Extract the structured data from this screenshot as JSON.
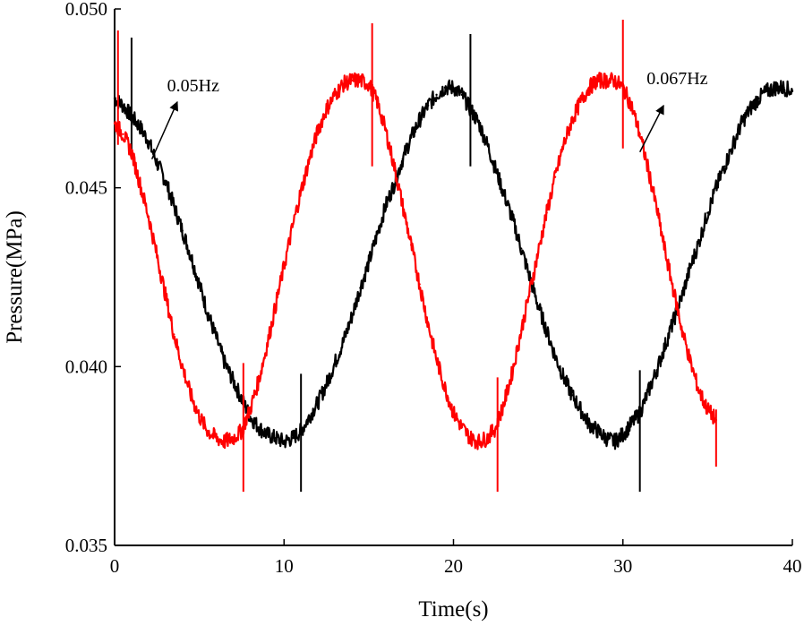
{
  "chart_data": {
    "type": "line",
    "title": "",
    "xlabel": "Time(s)",
    "ylabel": "Pressure(MPa)",
    "xlim": [
      0,
      40
    ],
    "ylim": [
      0.035,
      0.05
    ],
    "grid": false,
    "x_ticks": [
      {
        "value": 0,
        "label": "0"
      },
      {
        "value": 10,
        "label": "10"
      },
      {
        "value": 20,
        "label": "20"
      },
      {
        "value": 30,
        "label": "30"
      },
      {
        "value": 40,
        "label": "40"
      }
    ],
    "y_ticks": [
      {
        "value": 0.035,
        "label": "0.035"
      },
      {
        "value": 0.04,
        "label": "0.040"
      },
      {
        "value": 0.045,
        "label": "0.045"
      },
      {
        "value": 0.05,
        "label": "0.050"
      }
    ],
    "series": [
      {
        "color": "#000000",
        "frequency_hz": 0.05,
        "x": [
          0,
          0.5,
          1,
          1.5,
          2,
          2.5,
          3,
          3.5,
          4,
          4.5,
          5,
          5.5,
          6,
          6.5,
          7,
          7.5,
          8,
          8.5,
          9,
          9.5,
          10,
          10.5,
          11,
          11.5,
          12,
          12.5,
          13,
          13.5,
          14,
          14.5,
          15,
          15.5,
          16,
          16.5,
          17,
          17.5,
          18,
          18.5,
          19,
          19.5,
          20,
          20.5,
          21,
          21.5,
          22,
          22.5,
          23,
          23.5,
          24,
          24.5,
          25,
          25.5,
          26,
          26.5,
          27,
          27.5,
          28,
          28.5,
          29,
          29.5,
          30,
          30.5,
          31,
          31.5,
          32,
          32.5,
          33,
          33.5,
          34,
          34.5,
          35,
          35.5,
          36,
          36.5,
          37,
          37.5,
          38,
          38.5,
          39,
          39.5,
          40
        ],
        "y": [
          0.0475,
          0.0473,
          0.047,
          0.0467,
          0.0463,
          0.0457,
          0.0452,
          0.0445,
          0.0438,
          0.0431,
          0.0423,
          0.0415,
          0.0408,
          0.0401,
          0.0396,
          0.0391,
          0.0386,
          0.0383,
          0.0381,
          0.038,
          0.0379,
          0.038,
          0.0382,
          0.0386,
          0.039,
          0.0395,
          0.0401,
          0.0407,
          0.0414,
          0.0422,
          0.0429,
          0.0437,
          0.0445,
          0.0451,
          0.0458,
          0.0464,
          0.0469,
          0.0473,
          0.0476,
          0.0478,
          0.0478,
          0.0476,
          0.0472,
          0.0468,
          0.0462,
          0.0455,
          0.0448,
          0.0441,
          0.0433,
          0.0425,
          0.0417,
          0.041,
          0.0403,
          0.0397,
          0.0392,
          0.0388,
          0.0384,
          0.0382,
          0.038,
          0.0379,
          0.0381,
          0.0384,
          0.0387,
          0.0393,
          0.0399,
          0.0406,
          0.0413,
          0.042,
          0.0428,
          0.0435,
          0.0443,
          0.045,
          0.0456,
          0.0462,
          0.0468,
          0.0472,
          0.0475,
          0.0477,
          0.0478,
          0.0478,
          0.0477
        ],
        "spikes": [
          {
            "x": 1.0,
            "y_min": 0.046,
            "y_max": 0.0492
          },
          {
            "x": 11.0,
            "y_min": 0.0365,
            "y_max": 0.0398
          },
          {
            "x": 21.0,
            "y_min": 0.0456,
            "y_max": 0.0493
          },
          {
            "x": 31.0,
            "y_min": 0.0365,
            "y_max": 0.0399
          }
        ]
      },
      {
        "color": "#ff0000",
        "frequency_hz": 0.067,
        "x": [
          0,
          0.5,
          1,
          1.5,
          2,
          2.5,
          3,
          3.5,
          4,
          4.5,
          5,
          5.5,
          6,
          6.5,
          7,
          7.5,
          8,
          8.5,
          9,
          9.5,
          10,
          10.5,
          11,
          11.5,
          12,
          12.5,
          13,
          13.5,
          14,
          14.5,
          15,
          15.5,
          16,
          16.5,
          17,
          17.5,
          18,
          18.5,
          19,
          19.5,
          20,
          20.5,
          21,
          21.5,
          22,
          22.5,
          23,
          23.5,
          24,
          24.5,
          25,
          25.5,
          26,
          26.5,
          27,
          27.5,
          28,
          28.5,
          29,
          29.5,
          30,
          30.5,
          31,
          31.5,
          32,
          32.5,
          33,
          33.5,
          34,
          34.5,
          35,
          35.5
        ],
        "y": [
          0.0468,
          0.0465,
          0.046,
          0.0451,
          0.0442,
          0.0431,
          0.042,
          0.0409,
          0.04,
          0.0392,
          0.0386,
          0.0382,
          0.038,
          0.0379,
          0.038,
          0.0382,
          0.0388,
          0.0396,
          0.0406,
          0.0417,
          0.0428,
          0.0439,
          0.0449,
          0.0458,
          0.0466,
          0.0472,
          0.0476,
          0.0479,
          0.048,
          0.048,
          0.0479,
          0.0474,
          0.0466,
          0.0456,
          0.0445,
          0.0434,
          0.0423,
          0.0412,
          0.0402,
          0.0394,
          0.0387,
          0.0383,
          0.038,
          0.0379,
          0.038,
          0.0383,
          0.039,
          0.0399,
          0.041,
          0.0421,
          0.0432,
          0.0443,
          0.0453,
          0.0462,
          0.0469,
          0.0474,
          0.0478,
          0.048,
          0.048,
          0.048,
          0.0478,
          0.0473,
          0.0465,
          0.0455,
          0.0444,
          0.0432,
          0.0421,
          0.041,
          0.0401,
          0.0393,
          0.0388,
          0.0385
        ],
        "spikes": [
          {
            "x": 0.2,
            "y_min": 0.0462,
            "y_max": 0.0494
          },
          {
            "x": 7.6,
            "y_min": 0.0365,
            "y_max": 0.0401
          },
          {
            "x": 15.2,
            "y_min": 0.0456,
            "y_max": 0.0496
          },
          {
            "x": 22.6,
            "y_min": 0.0365,
            "y_max": 0.0397
          },
          {
            "x": 30.0,
            "y_min": 0.0461,
            "y_max": 0.0497
          },
          {
            "x": 35.5,
            "y_min": 0.0372,
            "y_max": 0.0388
          }
        ]
      }
    ],
    "annotations": [
      {
        "text": "0.05Hz",
        "series_index": 0,
        "text_x": 3.1,
        "text_y": 0.0477,
        "arrow_from": [
          2.2,
          0.0458
        ],
        "arrow_to": [
          3.7,
          0.0474
        ]
      },
      {
        "text": "0.067Hz",
        "series_index": 1,
        "text_x": 31.4,
        "text_y": 0.0479,
        "arrow_from": [
          31.0,
          0.046
        ],
        "arrow_to": [
          32.4,
          0.0473
        ]
      }
    ]
  }
}
